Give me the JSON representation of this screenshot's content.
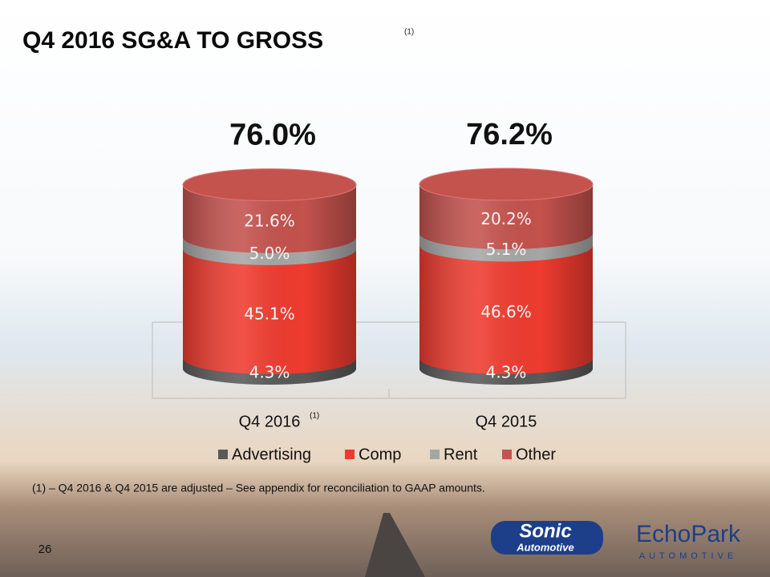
{
  "slide": {
    "title": "Q4 2016 SG&A TO GROSS",
    "title_note": "(1)",
    "page_number": "26",
    "footnote": "(1) – Q4 2016 & Q4 2015 are adjusted – See appendix for reconciliation to GAAP amounts.",
    "logos": {
      "sonic": "Sonic",
      "sonic_sub": "Automotive",
      "echopark": "EchoPark",
      "echopark_sub": "AUTOMOTIVE"
    }
  },
  "chart_data": {
    "type": "stacked-cylinder",
    "categories": [
      "Q4 2016",
      "Q4 2015"
    ],
    "category_notes": [
      "(1)",
      null
    ],
    "totals": [
      76.0,
      76.2
    ],
    "total_labels": [
      "76.0%",
      "76.2%"
    ],
    "series": [
      {
        "name": "Advertising",
        "color": "#595959",
        "values": [
          4.3,
          4.3
        ],
        "value_labels": [
          "4.3%",
          "4.3%"
        ]
      },
      {
        "name": "Comp",
        "color": "#ef3b2f",
        "values": [
          45.1,
          46.6
        ],
        "value_labels": [
          "45.1%",
          "46.6%"
        ]
      },
      {
        "name": "Rent",
        "color": "#a6a6a6",
        "values": [
          5.0,
          5.1
        ],
        "value_labels": [
          "5.0%",
          "5.1%"
        ]
      },
      {
        "name": "Other",
        "color": "#c4524d",
        "values": [
          21.6,
          20.2
        ],
        "value_labels": [
          "21.6%",
          "20.2%"
        ]
      }
    ]
  }
}
